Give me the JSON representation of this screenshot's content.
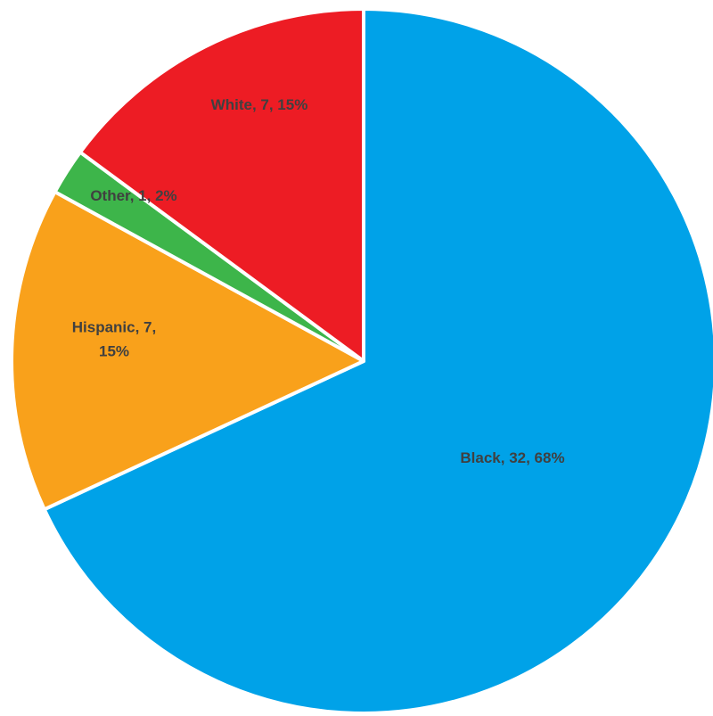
{
  "chart_data": {
    "type": "pie",
    "start_angle_deg": 0,
    "direction": "clockwise",
    "slices": [
      {
        "name": "Black",
        "value": 32,
        "percent": "68%",
        "label_lines": [
          "Black, 32, 68%"
        ],
        "color": "#00A2E8"
      },
      {
        "name": "Hispanic",
        "value": 7,
        "percent": "15%",
        "label_lines": [
          "Hispanic, 7,",
          "15%"
        ],
        "color": "#F9A11B"
      },
      {
        "name": "Other",
        "value": 1,
        "percent": "2%",
        "label_lines": [
          "Other, 1, 2%"
        ],
        "color": "#3DB54A"
      },
      {
        "name": "White",
        "value": 7,
        "percent": "15%",
        "label_lines": [
          "White, 7, 15%"
        ],
        "color": "#ED1C24"
      }
    ],
    "legend": "none",
    "title": ""
  }
}
